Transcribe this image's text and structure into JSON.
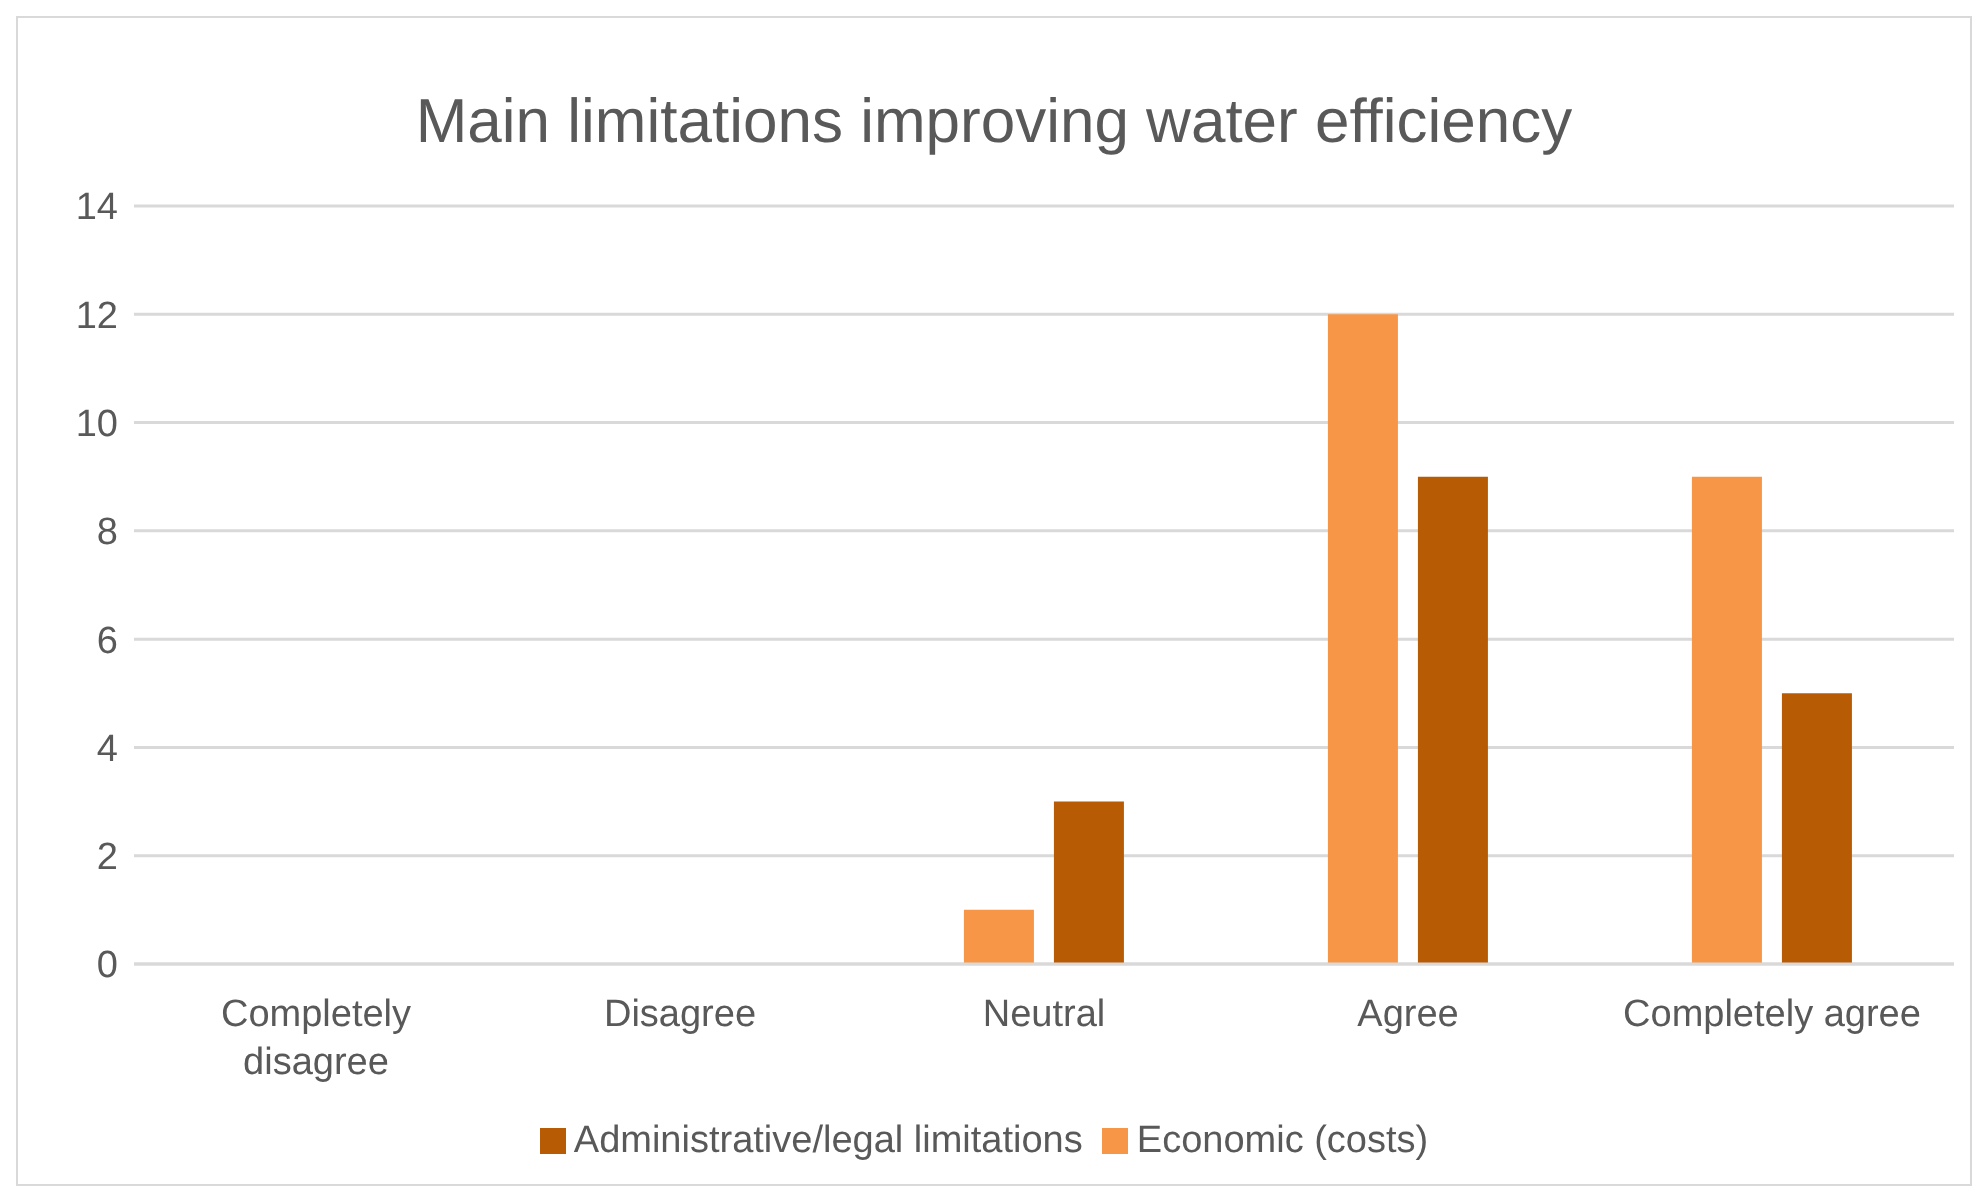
{
  "chart_data": {
    "type": "bar",
    "title": "Main limitations improving water efficiency",
    "categories": [
      "Completely disagree",
      "Disagree",
      "Neutral",
      "Agree",
      "Completely agree"
    ],
    "series": [
      {
        "name": "Economic (costs)",
        "color": "#f79646",
        "values": [
          0,
          0,
          1,
          12,
          9
        ]
      },
      {
        "name": "Administrative/legal limitations",
        "color": "#b85b05",
        "values": [
          0,
          0,
          3,
          9,
          5
        ]
      }
    ],
    "ylim": [
      0,
      14
    ],
    "yticks": [
      0,
      2,
      4,
      6,
      8,
      10,
      12,
      14
    ],
    "grid": "y",
    "legend": "bottom"
  }
}
